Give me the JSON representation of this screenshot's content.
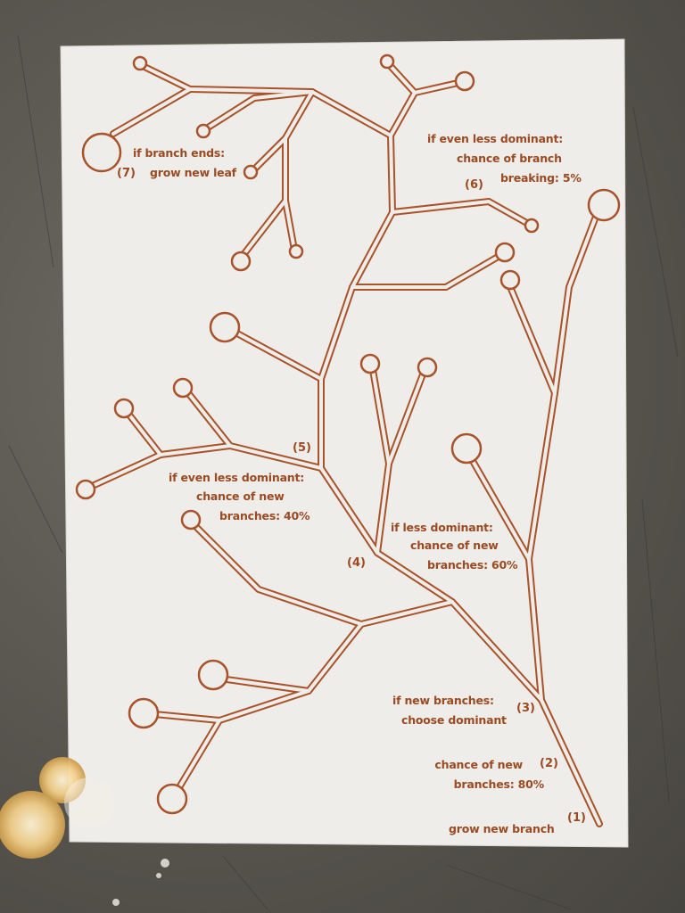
{
  "poster": {
    "annotations": {
      "step1": {
        "number": "(1)",
        "text": "grow new branch"
      },
      "step2": {
        "number": "(2)",
        "line1": "chance of new",
        "line2": "branches: 80%"
      },
      "step3": {
        "number": "(3)",
        "line1": "if new branches:",
        "line2": "choose dominant"
      },
      "step4": {
        "number": "(4)",
        "line1": "if less dominant:",
        "line2": "chance of new",
        "line3": "branches: 60%"
      },
      "step5": {
        "number": "(5)",
        "line1": "if even less dominant:",
        "line2": "chance of new",
        "line3": "branches: 40%"
      },
      "step6": {
        "number": "(6)",
        "line1": "if even less dominant:",
        "line2": "chance of branch",
        "line3": "breaking: 5%"
      },
      "step7": {
        "number": "(7)",
        "line1": "if branch ends:",
        "line2": "grow new leaf"
      }
    },
    "colors": {
      "ink": "#9b4a22",
      "paper": "#eeedea",
      "background": "#5e5c55"
    }
  }
}
